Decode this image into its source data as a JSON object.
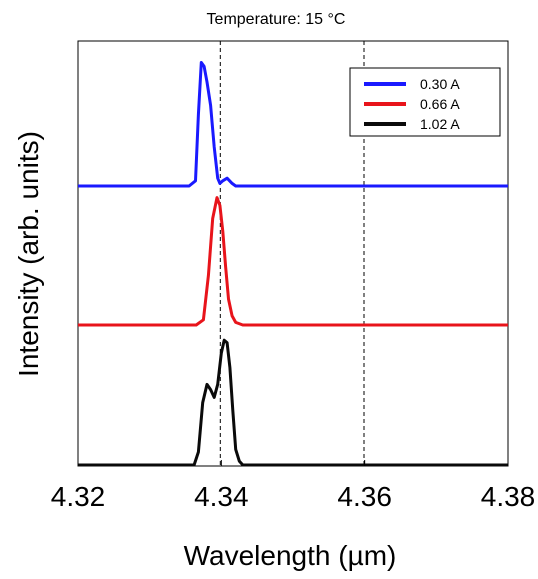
{
  "chart_data": {
    "type": "line",
    "title": "Temperature: 15 °C",
    "xlabel": "Wavelength (µm)",
    "ylabel": "Intensity (arb. units)",
    "xlim": [
      4.32,
      4.38
    ],
    "xticks": [
      "4.32",
      "4.34",
      "4.36",
      "4.38"
    ],
    "xtick_values": [
      4.32,
      4.34,
      4.36,
      4.38
    ],
    "yticks": [],
    "grid": false,
    "legend_position": "top-right",
    "reference_lines_x": [
      4.34,
      4.36
    ],
    "series": [
      {
        "name": "0.30 A",
        "color": "#1a1aff",
        "offset": 2.0,
        "x": [
          4.32,
          4.3355,
          4.3364,
          4.3368,
          4.3372,
          4.3376,
          4.338,
          4.3385,
          4.339,
          4.3395,
          4.3398,
          4.3402,
          4.3408,
          4.3415,
          4.342,
          4.344,
          4.38
        ],
        "values": [
          0.0,
          0.0,
          0.04,
          0.55,
          0.95,
          0.92,
          0.8,
          0.62,
          0.3,
          0.06,
          0.02,
          0.04,
          0.06,
          0.02,
          0.0,
          0.0,
          0.0
        ]
      },
      {
        "name": "0.66 A",
        "color": "#e8141b",
        "offset": 1.0,
        "x": [
          4.32,
          4.3365,
          4.3375,
          4.3382,
          4.3388,
          4.3394,
          4.3398,
          4.3402,
          4.3406,
          4.341,
          4.3415,
          4.342,
          4.343,
          4.38
        ],
        "values": [
          0.0,
          0.0,
          0.04,
          0.38,
          0.82,
          0.98,
          0.92,
          0.72,
          0.45,
          0.2,
          0.07,
          0.02,
          0.0,
          0.0
        ]
      },
      {
        "name": "1.02 A",
        "color": "#0a0a0a",
        "offset": 0.0,
        "x": [
          4.32,
          4.3362,
          4.3368,
          4.3374,
          4.338,
          4.3385,
          4.339,
          4.3395,
          4.34,
          4.3404,
          4.3408,
          4.3412,
          4.3416,
          4.342,
          4.3425,
          4.343,
          4.344,
          4.38
        ],
        "values": [
          0.0,
          0.0,
          0.1,
          0.48,
          0.62,
          0.58,
          0.52,
          0.62,
          0.86,
          0.96,
          0.94,
          0.75,
          0.42,
          0.12,
          0.03,
          0.0,
          0.0,
          0.0
        ]
      }
    ]
  }
}
